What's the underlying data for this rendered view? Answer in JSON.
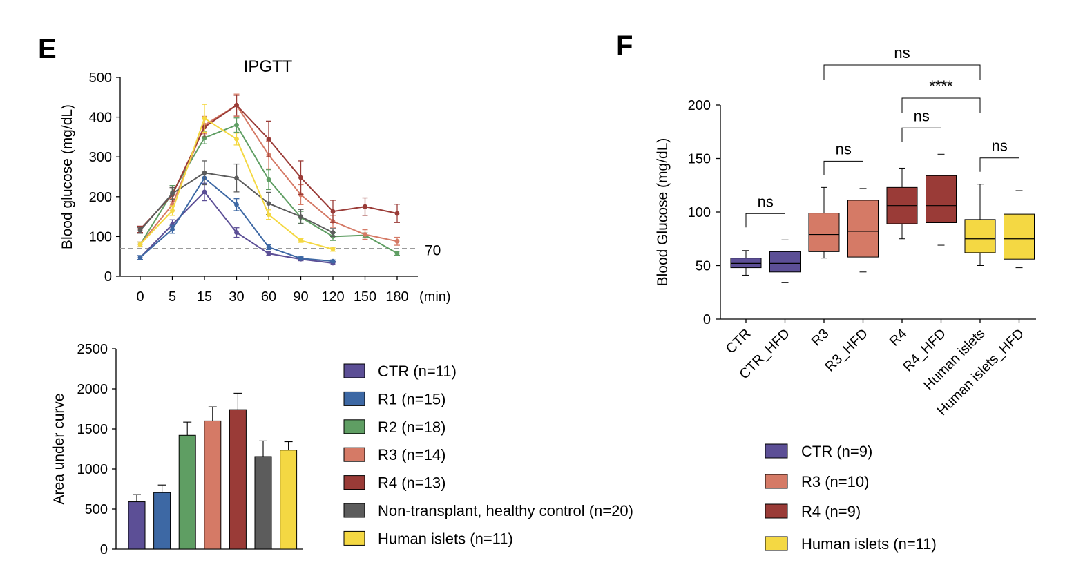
{
  "panels": {
    "e": "E",
    "f": "F"
  },
  "colors": {
    "CTR": "#5c4f96",
    "R1": "#3d68a4",
    "R2": "#5f9e63",
    "R3": "#d57a66",
    "R4": "#9a3b37",
    "Control": "#5c5c5c",
    "Human": "#f4d843"
  },
  "chart_data": [
    {
      "id": "ipgtt",
      "type": "line",
      "title": "IPGTT",
      "xlabel": "(min)",
      "ylabel": "Blood glucose (mg/dL)",
      "x": [
        "0",
        "5",
        "15",
        "30",
        "60",
        "90",
        "120",
        "150",
        "180"
      ],
      "ylim": [
        0,
        500
      ],
      "yticks": [
        "0",
        "100",
        "200",
        "300",
        "400",
        "500"
      ],
      "reference_line": {
        "y": 70,
        "label": "70",
        "style": "dashed"
      },
      "series": [
        {
          "key": "CTR",
          "values": [
            47,
            130,
            212,
            110,
            57,
            43,
            33,
            null,
            null
          ],
          "errors": [
            5,
            12,
            22,
            12,
            5,
            4,
            4,
            null,
            null
          ]
        },
        {
          "key": "R1",
          "values": [
            47,
            118,
            247,
            180,
            73,
            45,
            38,
            null,
            null
          ],
          "errors": [
            5,
            10,
            15,
            15,
            6,
            4,
            3,
            null,
            null
          ]
        },
        {
          "key": "R2",
          "values": [
            80,
            210,
            348,
            380,
            243,
            148,
            100,
            103,
            58
          ],
          "errors": [
            6,
            18,
            15,
            18,
            25,
            15,
            10,
            6,
            5
          ]
        },
        {
          "key": "R3",
          "values": [
            80,
            180,
            380,
            430,
            305,
            205,
            138,
            105,
            88
          ],
          "errors": [
            6,
            15,
            22,
            28,
            35,
            25,
            15,
            12,
            10
          ]
        },
        {
          "key": "R4",
          "values": [
            118,
            205,
            375,
            430,
            345,
            248,
            163,
            175,
            158
          ],
          "errors": [
            8,
            18,
            25,
            25,
            45,
            42,
            28,
            22,
            23
          ]
        },
        {
          "key": "Control",
          "values": [
            115,
            208,
            260,
            247,
            183,
            150,
            110,
            null,
            null
          ],
          "errors": [
            7,
            15,
            30,
            35,
            28,
            18,
            10,
            null,
            null
          ]
        },
        {
          "key": "Human",
          "values": [
            80,
            165,
            397,
            345,
            155,
            90,
            68,
            null,
            null
          ],
          "errors": [
            6,
            12,
            35,
            15,
            12,
            5,
            5,
            null,
            null
          ]
        }
      ]
    },
    {
      "id": "auc",
      "type": "bar",
      "ylabel": "Area under curve",
      "ylim": [
        0,
        2500
      ],
      "yticks": [
        "0",
        "500",
        "1000",
        "1500",
        "2000",
        "2500"
      ],
      "series": [
        {
          "key": "CTR",
          "value": 590,
          "error": 90
        },
        {
          "key": "R1",
          "value": 705,
          "error": 95
        },
        {
          "key": "R2",
          "value": 1420,
          "error": 165
        },
        {
          "key": "R3",
          "value": 1600,
          "error": 175
        },
        {
          "key": "R4",
          "value": 1740,
          "error": 205
        },
        {
          "key": "Control",
          "value": 1155,
          "error": 195
        },
        {
          "key": "Human",
          "value": 1235,
          "error": 105
        }
      ],
      "legend": [
        {
          "key": "CTR",
          "label": "CTR (n=11)"
        },
        {
          "key": "R1",
          "label": "R1 (n=15)"
        },
        {
          "key": "R2",
          "label": "R2 (n=18)"
        },
        {
          "key": "R3",
          "label": "R3 (n=14)"
        },
        {
          "key": "R4",
          "label": "R4 (n=13)"
        },
        {
          "key": "Control",
          "label": "Non-transplant, healthy control (n=20)"
        },
        {
          "key": "Human",
          "label": "Human islets (n=11)"
        }
      ]
    },
    {
      "id": "boxplot",
      "type": "box",
      "ylabel": "Blood Glucose (mg/dL)",
      "ylim": [
        0,
        200
      ],
      "yticks": [
        "0",
        "50",
        "100",
        "150",
        "200"
      ],
      "categories": [
        "CTR",
        "CTR_HFD",
        "R3",
        "R3_HFD",
        "R4",
        "R4_HFD",
        "Human islets",
        "Human islets_HFD"
      ],
      "boxes": [
        {
          "key": "CTR",
          "min": 41,
          "q1": 48,
          "median": 52,
          "q3": 57,
          "max": 64
        },
        {
          "key": "CTR",
          "min": 34,
          "q1": 44,
          "median": 52,
          "q3": 63,
          "max": 74
        },
        {
          "key": "R3",
          "min": 57,
          "q1": 63,
          "median": 79,
          "q3": 99,
          "max": 123
        },
        {
          "key": "R3",
          "min": 44,
          "q1": 58,
          "median": 82,
          "q3": 111,
          "max": 122
        },
        {
          "key": "R4",
          "min": 75,
          "q1": 89,
          "median": 106,
          "q3": 123,
          "max": 141
        },
        {
          "key": "R4",
          "min": 69,
          "q1": 90,
          "median": 106,
          "q3": 134,
          "max": 154
        },
        {
          "key": "Human",
          "min": 50,
          "q1": 62,
          "median": 75,
          "q3": 93,
          "max": 126
        },
        {
          "key": "Human",
          "min": 48,
          "q1": 56,
          "median": 75,
          "q3": 98,
          "max": 120
        }
      ],
      "significance": [
        {
          "from": 0,
          "to": 1,
          "label": "ns",
          "tier": 1
        },
        {
          "from": 2,
          "to": 3,
          "label": "ns",
          "tier": 1
        },
        {
          "from": 4,
          "to": 5,
          "label": "ns",
          "tier": 1
        },
        {
          "from": 6,
          "to": 7,
          "label": "ns",
          "tier": 1
        },
        {
          "from": 4,
          "to": 6,
          "label": "****",
          "tier": 2
        },
        {
          "from": 2,
          "to": 6,
          "label": "ns",
          "tier": 3
        }
      ],
      "legend": [
        {
          "key": "CTR",
          "label": "CTR (n=9)"
        },
        {
          "key": "R3",
          "label": "R3 (n=10)"
        },
        {
          "key": "R4",
          "label": "R4 (n=9)"
        },
        {
          "key": "Human",
          "label": "Human islets (n=11)"
        }
      ]
    }
  ]
}
